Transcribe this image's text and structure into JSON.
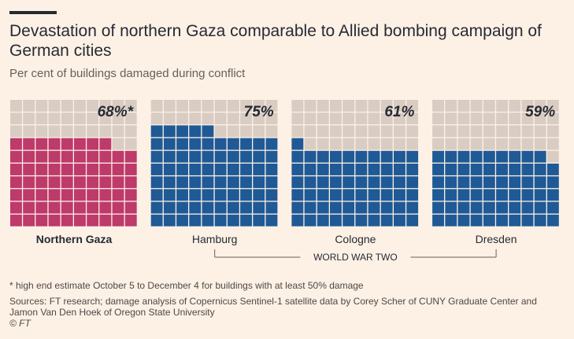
{
  "header": {
    "title": "Devastation of northern Gaza comparable to Allied bombing campaign of German cities",
    "subtitle": "Per cent of buildings damaged during conflict"
  },
  "colors": {
    "background": "#fdf1e5",
    "undamaged": "#d9ccc3",
    "gaza": "#bd3a6b",
    "germany": "#1f5a96",
    "grid_line": "#fdf1e5"
  },
  "chart_data": {
    "type": "waffle",
    "grid": {
      "columns": 10,
      "rows": 10,
      "unit": "1% of buildings"
    },
    "group_label": "WORLD WAR TWO",
    "panels": [
      {
        "name": "Northern Gaza",
        "value": 68,
        "value_label": "68%*",
        "color": "#bd3a6b",
        "bold": true,
        "group": ""
      },
      {
        "name": "Hamburg",
        "value": 75,
        "value_label": "75%",
        "color": "#1f5a96",
        "bold": false,
        "group": "World War Two"
      },
      {
        "name": "Cologne",
        "value": 61,
        "value_label": "61%",
        "color": "#1f5a96",
        "bold": false,
        "group": "World War Two"
      },
      {
        "name": "Dresden",
        "value": 59,
        "value_label": "59%",
        "color": "#1f5a96",
        "bold": false,
        "group": "World War Two"
      }
    ]
  },
  "footer": {
    "footnote": "* high end estimate October 5 to December 4 for buildings with at least 50% damage",
    "sources": "Sources: FT research; damage analysis of Copernicus Sentinel-1 satellite data by Corey Scher of CUNY Graduate Center and Jamon Van Den Hoek of Oregon State University",
    "credit": "© FT"
  }
}
